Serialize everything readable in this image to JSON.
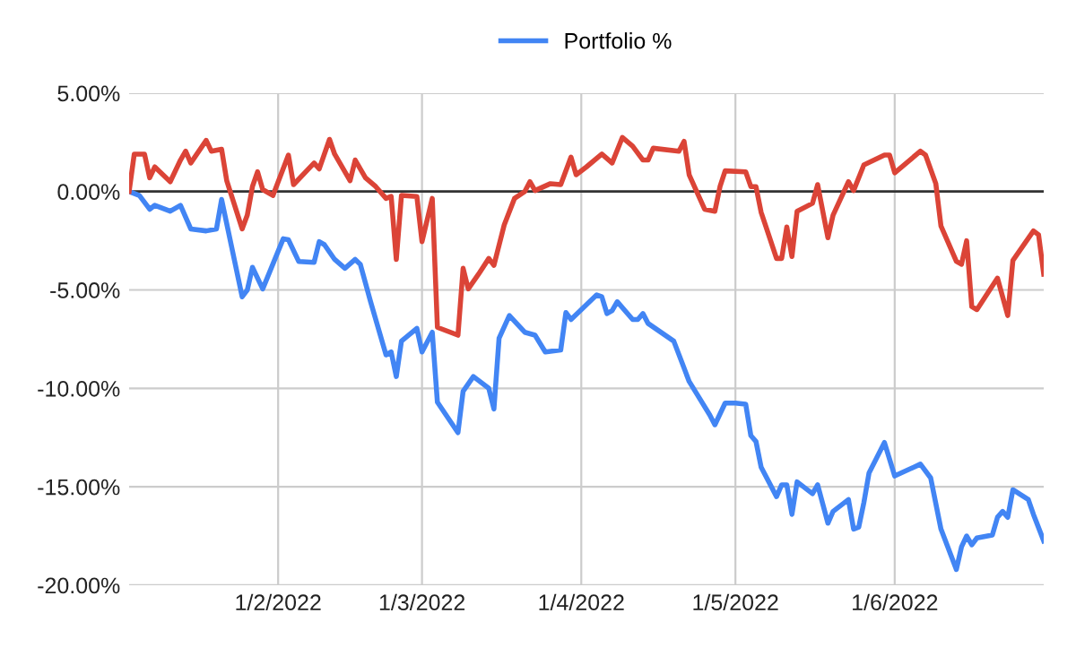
{
  "chart_data": {
    "type": "line",
    "legend": "top",
    "grid": true,
    "xlim": [
      "2022-01-03",
      "2022-06-30"
    ],
    "xticks": [
      {
        "value": "2022-02-01",
        "label": "1/2/2022"
      },
      {
        "value": "2022-03-01",
        "label": "1/3/2022"
      },
      {
        "value": "2022-04-01",
        "label": "1/4/2022"
      },
      {
        "value": "2022-05-01",
        "label": "1/5/2022"
      },
      {
        "value": "2022-06-01",
        "label": "1/6/2022"
      }
    ],
    "ylim": [
      -20,
      5
    ],
    "yticks": [
      {
        "value": 5,
        "label": "5.00%"
      },
      {
        "value": 0,
        "label": "0.00%"
      },
      {
        "value": -5,
        "label": "-5.00%"
      },
      {
        "value": -10,
        "label": "-10.00%"
      },
      {
        "value": -15,
        "label": "-15.00%"
      },
      {
        "value": -20,
        "label": "-20.00%"
      }
    ],
    "ref_lines": [
      {
        "axis": "y",
        "value": 0,
        "color": "#333333"
      }
    ],
    "series": [
      {
        "name": "Portfolio %",
        "color": "#4285f4",
        "x": [
          "2022-01-03",
          "2022-01-05",
          "2022-01-07",
          "2022-01-08",
          "2022-01-11",
          "2022-01-13",
          "2022-01-15",
          "2022-01-18",
          "2022-01-20",
          "2022-01-21",
          "2022-01-25",
          "2022-01-26",
          "2022-01-27",
          "2022-01-29",
          "2022-02-02",
          "2022-02-03",
          "2022-02-05",
          "2022-02-08",
          "2022-02-09",
          "2022-02-10",
          "2022-02-12",
          "2022-02-14",
          "2022-02-16",
          "2022-02-17",
          "2022-02-19",
          "2022-02-22",
          "2022-02-23",
          "2022-02-24",
          "2022-02-25",
          "2022-02-28",
          "2022-03-01",
          "2022-03-03",
          "2022-03-04",
          "2022-03-08",
          "2022-03-09",
          "2022-03-11",
          "2022-03-14",
          "2022-03-15",
          "2022-03-16",
          "2022-03-18",
          "2022-03-21",
          "2022-03-23",
          "2022-03-25",
          "2022-03-28",
          "2022-03-29",
          "2022-03-30",
          "2022-04-02",
          "2022-04-04",
          "2022-04-05",
          "2022-04-06",
          "2022-04-07",
          "2022-04-08",
          "2022-04-11",
          "2022-04-12",
          "2022-04-13",
          "2022-04-14",
          "2022-04-19",
          "2022-04-22",
          "2022-04-26",
          "2022-04-27",
          "2022-04-29",
          "2022-05-01",
          "2022-05-03",
          "2022-05-04",
          "2022-05-05",
          "2022-05-06",
          "2022-05-09",
          "2022-05-10",
          "2022-05-11",
          "2022-05-12",
          "2022-05-13",
          "2022-05-16",
          "2022-05-17",
          "2022-05-19",
          "2022-05-20",
          "2022-05-23",
          "2022-05-24",
          "2022-05-25",
          "2022-05-26",
          "2022-05-27",
          "2022-05-30",
          "2022-06-01",
          "2022-06-06",
          "2022-06-08",
          "2022-06-10",
          "2022-06-13",
          "2022-06-14",
          "2022-06-15",
          "2022-06-16",
          "2022-06-17",
          "2022-06-20",
          "2022-06-21",
          "2022-06-22",
          "2022-06-23",
          "2022-06-24",
          "2022-06-27",
          "2022-06-28",
          "2022-06-30"
        ],
        "values": [
          0,
          -0.2,
          -0.9,
          -0.7,
          -1.0,
          -0.7,
          -1.9,
          -2.0,
          -1.9,
          -0.4,
          -5.35,
          -5.0,
          -3.85,
          -4.95,
          -2.4,
          -2.45,
          -3.55,
          -3.6,
          -2.55,
          -2.7,
          -3.45,
          -3.9,
          -3.45,
          -3.7,
          -5.6,
          -8.3,
          -8.15,
          -9.4,
          -7.6,
          -6.95,
          -8.15,
          -7.15,
          -10.7,
          -12.25,
          -10.15,
          -9.4,
          -10.0,
          -11.05,
          -7.45,
          -6.3,
          -7.15,
          -7.3,
          -8.15,
          -8.05,
          -6.15,
          -6.5,
          -5.75,
          -5.25,
          -5.35,
          -6.2,
          -6.05,
          -5.6,
          -6.5,
          -6.5,
          -6.2,
          -6.7,
          -7.6,
          -9.65,
          -11.35,
          -11.85,
          -10.75,
          -10.75,
          -10.8,
          -12.4,
          -12.7,
          -14.0,
          -15.5,
          -14.9,
          -14.9,
          -16.4,
          -14.75,
          -15.35,
          -14.9,
          -16.85,
          -16.25,
          -15.65,
          -17.15,
          -17.05,
          -15.8,
          -14.3,
          -12.75,
          -14.45,
          -13.85,
          -14.55,
          -17.15,
          -19.2,
          -18.05,
          -17.5,
          -17.95,
          -17.6,
          -17.45,
          -16.55,
          -16.25,
          -16.55,
          -15.15,
          -15.65,
          -16.4,
          -17.75
        ]
      },
      {
        "color": "#db4437",
        "x": [
          "2022-01-03",
          "2022-01-04",
          "2022-01-06",
          "2022-01-07",
          "2022-01-08",
          "2022-01-11",
          "2022-01-13",
          "2022-01-14",
          "2022-01-15",
          "2022-01-18",
          "2022-01-19",
          "2022-01-21",
          "2022-01-22",
          "2022-01-25",
          "2022-01-26",
          "2022-01-27",
          "2022-01-28",
          "2022-01-29",
          "2022-01-31",
          "2022-02-03",
          "2022-02-04",
          "2022-02-08",
          "2022-02-09",
          "2022-02-11",
          "2022-02-12",
          "2022-02-15",
          "2022-02-16",
          "2022-02-18",
          "2022-02-20",
          "2022-02-22",
          "2022-02-23",
          "2022-02-24",
          "2022-02-25",
          "2022-02-28",
          "2022-03-01",
          "2022-03-03",
          "2022-03-04",
          "2022-03-08",
          "2022-03-09",
          "2022-03-10",
          "2022-03-12",
          "2022-03-14",
          "2022-03-15",
          "2022-03-17",
          "2022-03-19",
          "2022-03-21",
          "2022-03-22",
          "2022-03-23",
          "2022-03-26",
          "2022-03-28",
          "2022-03-30",
          "2022-03-31",
          "2022-04-02",
          "2022-04-05",
          "2022-04-07",
          "2022-04-09",
          "2022-04-11",
          "2022-04-13",
          "2022-04-14",
          "2022-04-15",
          "2022-04-20",
          "2022-04-21",
          "2022-04-22",
          "2022-04-25",
          "2022-04-27",
          "2022-04-28",
          "2022-04-29",
          "2022-05-03",
          "2022-05-04",
          "2022-05-05",
          "2022-05-06",
          "2022-05-09",
          "2022-05-10",
          "2022-05-11",
          "2022-05-12",
          "2022-05-13",
          "2022-05-16",
          "2022-05-17",
          "2022-05-19",
          "2022-05-20",
          "2022-05-23",
          "2022-05-24",
          "2022-05-26",
          "2022-05-30",
          "2022-05-31",
          "2022-06-01",
          "2022-06-06",
          "2022-06-07",
          "2022-06-09",
          "2022-06-10",
          "2022-06-13",
          "2022-06-14",
          "2022-06-15",
          "2022-06-16",
          "2022-06-17",
          "2022-06-21",
          "2022-06-23",
          "2022-06-24",
          "2022-06-26",
          "2022-06-28",
          "2022-06-29",
          "2022-06-30"
        ],
        "values": [
          0,
          1.9,
          1.9,
          0.7,
          1.25,
          0.5,
          1.6,
          2.05,
          1.45,
          2.6,
          2.05,
          2.15,
          0.55,
          -1.9,
          -1.2,
          0.25,
          1.0,
          0.1,
          -0.2,
          1.85,
          0.35,
          1.45,
          1.15,
          2.65,
          1.9,
          0.55,
          1.6,
          0.7,
          0.25,
          -0.35,
          -0.25,
          -3.45,
          -0.2,
          -0.25,
          -2.55,
          -0.35,
          -6.9,
          -7.3,
          -3.9,
          -4.95,
          -4.2,
          -3.4,
          -3.75,
          -1.7,
          -0.35,
          0,
          0.5,
          0.05,
          0.4,
          0.35,
          1.75,
          0.85,
          1.25,
          1.9,
          1.45,
          2.75,
          2.3,
          1.6,
          1.6,
          2.2,
          2.05,
          2.55,
          0.85,
          -0.9,
          -1.0,
          0.25,
          1.05,
          1.0,
          0.25,
          0.25,
          -1.05,
          -3.4,
          -3.4,
          -1.8,
          -3.3,
          -1.0,
          -0.6,
          0.35,
          -2.35,
          -1.2,
          0.5,
          0.05,
          1.35,
          1.85,
          1.85,
          0.95,
          2.05,
          1.85,
          0.4,
          -1.75,
          -3.55,
          -3.7,
          -2.5,
          -5.85,
          -6.0,
          -4.4,
          -6.3,
          -3.5,
          -2.75,
          -2.0,
          -2.2,
          -4.2
        ]
      }
    ]
  }
}
